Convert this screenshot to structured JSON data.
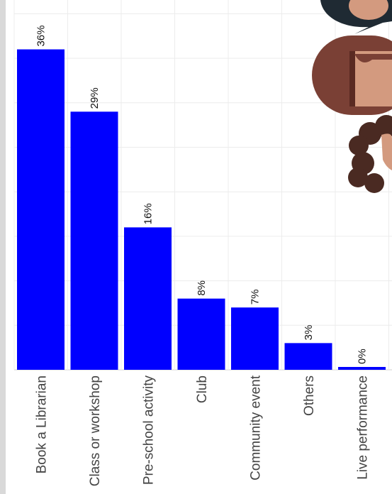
{
  "chart_data": {
    "type": "bar",
    "orientation": "vertical",
    "categories": [
      "Book a Librarian",
      "Class or workshop",
      "Pre-school activity",
      "Club",
      "Community event",
      "Others",
      "Live performance"
    ],
    "values": [
      36,
      29,
      16,
      8,
      7,
      3,
      0
    ],
    "value_labels": [
      "36%",
      "29%",
      "16%",
      "8%",
      "7%",
      "3%",
      "0%"
    ],
    "unit": "%",
    "title": "",
    "xlabel": "",
    "ylabel": "",
    "ylim": [
      0,
      40
    ],
    "grid": true,
    "legend": "none",
    "tick_label_rotation": "vertical",
    "value_label_rotation": "vertical"
  },
  "colors": {
    "bar": "#0000ff",
    "grid": "#ececec",
    "text": "#444444",
    "decor_dark": "#1f2a33",
    "decor_brown": "#7a4035",
    "decor_skin": "#d39a7f",
    "decor_hair": "#4a2a22"
  },
  "decorations": {
    "icons": [
      "person-avatar-icon",
      "person-avatar-icon",
      "person-avatar-icon"
    ]
  }
}
